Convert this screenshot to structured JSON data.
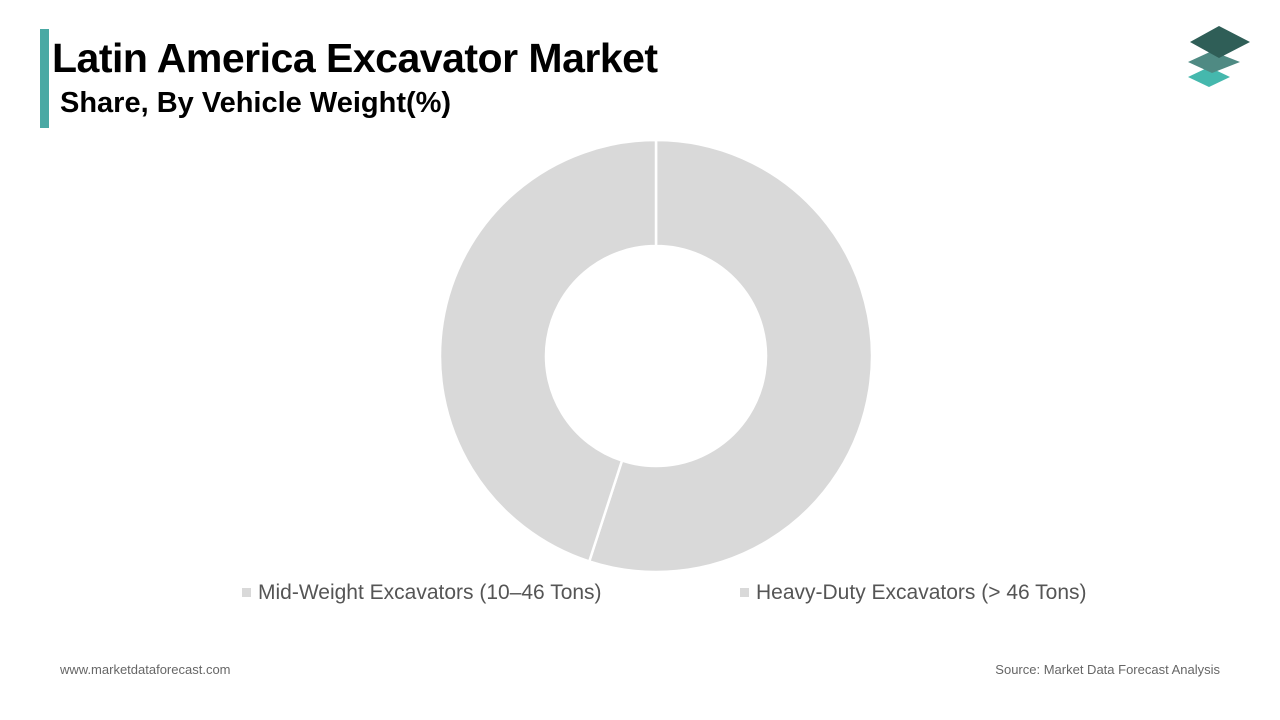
{
  "header": {
    "title": "Latin America Excavator Market",
    "subtitle": "Share, By Vehicle Weight(%)"
  },
  "footer": {
    "website": "www.marketdataforecast.com",
    "source": "Source: Market Data Forecast Analysis"
  },
  "colors": {
    "accent": "#4aa9a4",
    "slice": "#d9d9d9",
    "legend_marker": "#d9d9d9",
    "logo_dark": "#2f5e57",
    "logo_mid": "#4f8a83",
    "logo_light": "#45b8ad"
  },
  "chart_data": {
    "type": "pie",
    "donut": true,
    "categories": [
      "Mid-Weight Excavators (10–46 Tons)",
      "Heavy-Duty Excavators (> 46 Tons)"
    ],
    "values": [
      55,
      45
    ],
    "legend_position": "bottom"
  }
}
